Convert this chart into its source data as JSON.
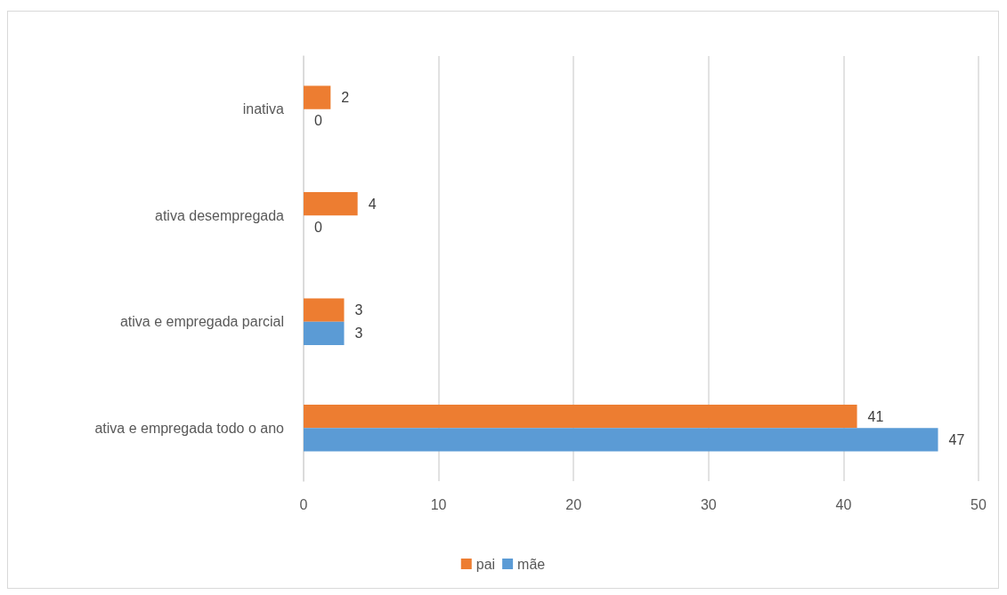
{
  "chart_data": {
    "type": "bar",
    "orientation": "horizontal",
    "categories": [
      "inativa",
      "ativa desempregada",
      "ativa e empregada parcial",
      "ativa e empregada todo o ano"
    ],
    "series": [
      {
        "name": "pai",
        "color": "#ed7d31",
        "values": [
          2,
          4,
          3,
          41
        ]
      },
      {
        "name": "mãe",
        "color": "#5b9bd5",
        "values": [
          0,
          0,
          3,
          47
        ]
      }
    ],
    "xlim": [
      0,
      50
    ],
    "xticks": [
      0,
      10,
      20,
      30,
      40,
      50
    ],
    "grid": "x",
    "legend": "bottom",
    "data_labels": true
  }
}
